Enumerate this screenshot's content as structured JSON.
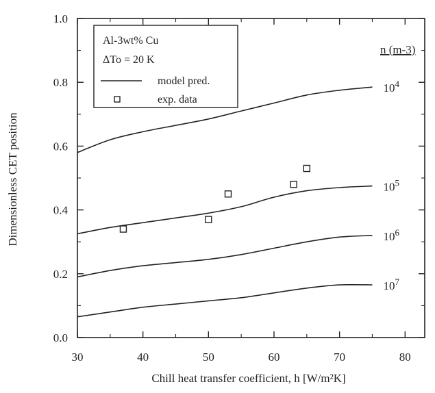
{
  "chart_data": {
    "type": "line",
    "title": "",
    "xlabel": "Chill heat transfer coefficient, h [W/m²K]",
    "ylabel": "Dimensionless CET position",
    "xlim": [
      30,
      83
    ],
    "ylim": [
      0.0,
      1.0
    ],
    "x_ticks": [
      "30",
      "40",
      "50",
      "60",
      "70",
      "80"
    ],
    "y_ticks": [
      "0.0",
      "0.2",
      "0.4",
      "0.6",
      "0.8",
      "1.0"
    ],
    "legend": {
      "placement": "top-left",
      "lines": [
        "Al-3wt% Cu",
        "ΔTo = 20 K"
      ],
      "model_label": "model pred.",
      "data_label": "exp. data"
    },
    "curve_label_header": "n (m-3)",
    "x": [
      30,
      35,
      40,
      45,
      50,
      55,
      60,
      65,
      70,
      75
    ],
    "series": [
      {
        "label_base": "10",
        "label_exp": "4",
        "values": [
          0.58,
          0.62,
          0.645,
          0.665,
          0.685,
          0.71,
          0.735,
          0.76,
          0.775,
          0.785
        ]
      },
      {
        "label_base": "10",
        "label_exp": "5",
        "values": [
          0.325,
          0.345,
          0.36,
          0.375,
          0.39,
          0.41,
          0.44,
          0.46,
          0.47,
          0.475
        ]
      },
      {
        "label_base": "10",
        "label_exp": "6",
        "values": [
          0.19,
          0.21,
          0.225,
          0.235,
          0.245,
          0.26,
          0.28,
          0.3,
          0.315,
          0.32
        ]
      },
      {
        "label_base": "10",
        "label_exp": "7",
        "values": [
          0.065,
          0.08,
          0.095,
          0.105,
          0.115,
          0.125,
          0.14,
          0.155,
          0.165,
          0.165
        ]
      }
    ],
    "exp_data": [
      {
        "x": 37,
        "y": 0.34
      },
      {
        "x": 50,
        "y": 0.37
      },
      {
        "x": 53,
        "y": 0.45
      },
      {
        "x": 63,
        "y": 0.48
      },
      {
        "x": 65,
        "y": 0.53
      }
    ]
  }
}
